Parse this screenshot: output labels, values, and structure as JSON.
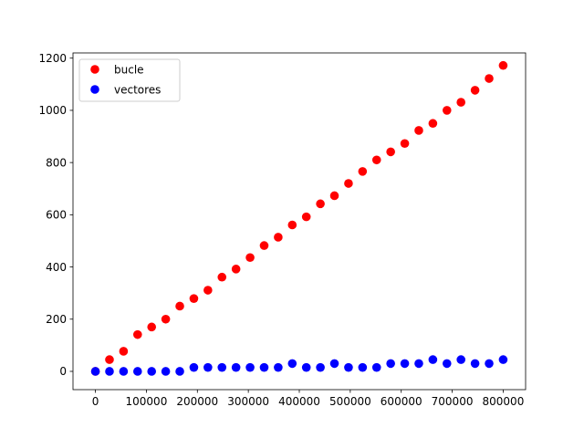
{
  "chart_data": {
    "type": "scatter",
    "title": "",
    "xlabel": "",
    "ylabel": "",
    "xlim": [
      -44000,
      844000
    ],
    "ylim": [
      -70,
      1220
    ],
    "xticks": [
      0,
      100000,
      200000,
      300000,
      400000,
      500000,
      600000,
      700000,
      800000
    ],
    "yticks": [
      0,
      200,
      400,
      600,
      800,
      1000,
      1200
    ],
    "grid": false,
    "legend_position": "top-left",
    "x": [
      0,
      27586,
      55172,
      82759,
      110345,
      137931,
      165517,
      193103,
      220690,
      248276,
      275862,
      303448,
      331034,
      358621,
      386207,
      413793,
      441379,
      468966,
      496552,
      524138,
      551724,
      579310,
      606897,
      634483,
      662069,
      689655,
      717241,
      744828,
      772414,
      800000
    ],
    "series": [
      {
        "name": "bucle",
        "color": "#ff0000",
        "values": [
          0,
          45,
          77,
          141,
          170,
          200,
          250,
          279,
          311,
          361,
          392,
          436,
          482,
          514,
          561,
          592,
          642,
          673,
          720,
          766,
          810,
          841,
          873,
          923,
          950,
          1000,
          1031,
          1077,
          1122,
          1172
        ]
      },
      {
        "name": "vectores",
        "color": "#0000ff",
        "values": [
          0,
          0,
          0,
          0,
          0,
          0,
          0,
          15,
          15,
          15,
          15,
          15,
          15,
          15,
          30,
          15,
          15,
          30,
          15,
          15,
          15,
          30,
          30,
          30,
          45,
          30,
          45,
          30,
          30,
          45
        ]
      }
    ]
  }
}
